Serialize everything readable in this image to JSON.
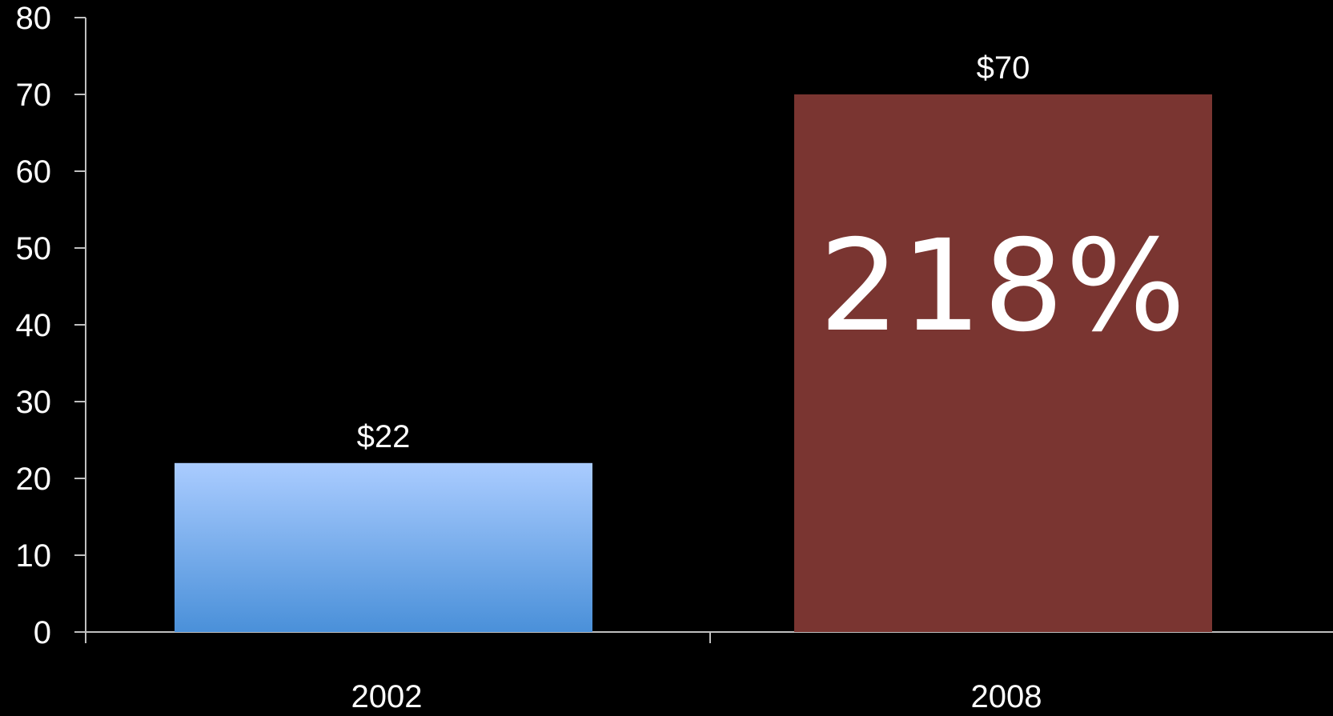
{
  "chart_data": {
    "type": "bar",
    "categories": [
      "2002",
      "2008"
    ],
    "values": [
      22,
      70
    ],
    "data_labels": [
      "$22",
      "$70"
    ],
    "annotation": "218%",
    "title": "",
    "xlabel": "",
    "ylabel": "",
    "ylim": [
      0,
      80
    ],
    "yticks": [
      "0",
      "10",
      "20",
      "30",
      "40",
      "50",
      "60",
      "70",
      "80"
    ],
    "grid": false,
    "legend": "none",
    "colors": {
      "background": "#000000",
      "axis": "#bfbfbf",
      "bar_2002_top": "#aaccff",
      "bar_2002_bottom": "#4a90d9",
      "bar_2008": "#7a3531",
      "text": "#ffffff"
    }
  }
}
